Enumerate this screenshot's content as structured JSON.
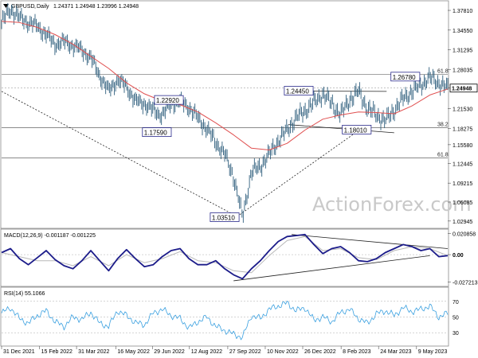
{
  "header": {
    "symbol": "GBPUSD",
    "timeframe": "Daily",
    "ohlc": "1.24371 1.24948 1.23996 1.24948"
  },
  "watermark": "ActionForex.com",
  "colors": {
    "price": "#30607e",
    "ema": "#e05050",
    "macd": "#1c1c8a",
    "signal": "#b8b8b8",
    "rsi": "#3aa0e0",
    "label_border": "#2a2a8c"
  },
  "chart_data": [
    {
      "type": "line",
      "panel": "price",
      "title": "",
      "y_ticks": [
        "1.37810",
        "1.34550",
        "1.31295",
        "1.28035",
        "1.24948",
        "1.21530",
        "1.18275",
        "1.15580",
        "1.12445",
        "1.09215",
        "1.06085",
        "1.02945"
      ],
      "ylim": [
        1.02,
        1.39
      ],
      "current_price": 1.24948,
      "current_price_label": "1.24948",
      "series": [
        {
          "kind": "price",
          "x": [
            0,
            2,
            4,
            6,
            8,
            10,
            12,
            14,
            16,
            18,
            20,
            22,
            24,
            26,
            28,
            30,
            32,
            34,
            36,
            38,
            40,
            42,
            44,
            46,
            48,
            50,
            52,
            54,
            56,
            58,
            60,
            62,
            64,
            66,
            68,
            70,
            72,
            74,
            76,
            78,
            80,
            82,
            84,
            86,
            88,
            90,
            92,
            94,
            96,
            98,
            100
          ],
          "values": [
            1.358,
            1.38,
            1.366,
            1.358,
            1.352,
            1.338,
            1.322,
            1.326,
            1.32,
            1.312,
            1.3,
            1.27,
            1.245,
            1.263,
            1.252,
            1.228,
            1.224,
            1.212,
            1.205,
            1.224,
            1.227,
            1.218,
            1.2,
            1.182,
            1.16,
            1.14,
            1.103,
            1.036,
            1.11,
            1.12,
            1.14,
            1.162,
            1.18,
            1.2,
            1.212,
            1.225,
            1.24,
            1.224,
            1.205,
            1.23,
            1.244,
            1.216,
            1.205,
            1.195,
            1.213,
            1.232,
            1.244,
            1.255,
            1.267,
            1.258,
            1.249
          ]
        },
        {
          "kind": "ema",
          "x": [
            0,
            4,
            8,
            12,
            16,
            20,
            24,
            28,
            32,
            36,
            40,
            44,
            48,
            52,
            56,
            60,
            64,
            68,
            72,
            76,
            80,
            84,
            88,
            92,
            96,
            100
          ],
          "values": [
            1.36,
            1.358,
            1.35,
            1.338,
            1.322,
            1.302,
            1.282,
            1.258,
            1.24,
            1.228,
            1.222,
            1.21,
            1.192,
            1.172,
            1.15,
            1.147,
            1.158,
            1.18,
            1.198,
            1.205,
            1.21,
            1.209,
            1.207,
            1.22,
            1.238,
            1.248
          ]
        }
      ],
      "x_ticks": [
        {
          "label": "31 Dec 2021",
          "x": 0
        },
        {
          "label": "15 Feb 2022",
          "x": 8.5
        },
        {
          "label": "31 Mar 2022",
          "x": 16.8
        },
        {
          "label": "16 May 2022",
          "x": 25.6
        },
        {
          "label": "29 Jun 2022",
          "x": 33.8
        },
        {
          "label": "12 Aug 2022",
          "x": 42.1
        },
        {
          "label": "27 Sep 2022",
          "x": 50.7
        },
        {
          "label": "10 Nov 2022",
          "x": 59.1
        },
        {
          "label": "26 Dec 2022",
          "x": 67.5
        },
        {
          "label": "8 Feb 2023",
          "x": 76.1
        },
        {
          "label": "24 Mar 2023",
          "x": 84.5
        },
        {
          "label": "9 May 2023",
          "x": 93.0
        }
      ],
      "annotations": [
        {
          "text": "1.26780",
          "x": 90.5,
          "y": 1.2678
        },
        {
          "text": "1.24450",
          "x": 66.6,
          "y": 1.2445
        },
        {
          "text": "1.22920",
          "x": 37.5,
          "y": 1.2292
        },
        {
          "text": "1.17590",
          "x": 34.8,
          "y": 1.1759
        },
        {
          "text": "1.18010",
          "x": 79.6,
          "y": 1.1801
        },
        {
          "text": "1.03510",
          "x": 50.0,
          "y": 1.0351
        }
      ],
      "fib_levels": [
        {
          "label": "61.8",
          "y": 1.272
        },
        {
          "label": "38.2",
          "y": 1.184
        },
        {
          "label": "61.8",
          "y": 1.134
        }
      ],
      "trendlines": [
        {
          "style": "dashed",
          "x1": 0,
          "y1": 1.244,
          "x2": 52.8,
          "y2": 1.037
        },
        {
          "style": "dashed",
          "x1": 52.8,
          "y1": 1.037,
          "x2": 79.6,
          "y2": 1.177
        },
        {
          "style": "solid",
          "x1": 66.6,
          "y1": 1.2445,
          "x2": 86.3,
          "y2": 1.244
        },
        {
          "style": "solid",
          "x1": 64.3,
          "y1": 1.189,
          "x2": 88.0,
          "y2": 1.1755
        }
      ]
    },
    {
      "type": "line",
      "panel": "macd",
      "title": "MACD(12,26,9) -0.001187 -0.001225",
      "y_ticks": [
        "0.020858",
        "0.00",
        "-0.027213"
      ],
      "ylim": [
        -0.03,
        0.023
      ],
      "current_label": "0.00",
      "series": [
        {
          "kind": "macd",
          "x": [
            0,
            2,
            4,
            6,
            8,
            10,
            12,
            14,
            16,
            18,
            20,
            22,
            24,
            26,
            28,
            30,
            32,
            34,
            36,
            38,
            40,
            42,
            44,
            46,
            48,
            50,
            52,
            54,
            56,
            58,
            60,
            62,
            64,
            66,
            68,
            70,
            72,
            74,
            76,
            78,
            80,
            82,
            84,
            86,
            88,
            90,
            92,
            94,
            96,
            98,
            100
          ],
          "values": [
            0.002,
            0.006,
            -0.004,
            -0.01,
            -0.003,
            0.004,
            -0.005,
            -0.011,
            -0.014,
            -0.006,
            0.004,
            -0.006,
            -0.016,
            -0.004,
            0.005,
            -0.004,
            -0.012,
            -0.01,
            -0.002,
            0.004,
            0.006,
            -0.004,
            -0.01,
            -0.01,
            -0.006,
            -0.014,
            -0.02,
            -0.024,
            -0.014,
            -0.006,
            0.004,
            0.013,
            0.018,
            0.019,
            0.02,
            0.01,
            0.001,
            0.006,
            0.008,
            0.002,
            -0.006,
            -0.007,
            -0.004,
            0.002,
            0.006,
            0.01,
            0.008,
            0.004,
            0.006,
            -0.002,
            -0.001
          ]
        },
        {
          "kind": "signal",
          "x": [
            0,
            4,
            8,
            12,
            16,
            20,
            24,
            28,
            32,
            36,
            40,
            44,
            48,
            52,
            56,
            60,
            64,
            68,
            72,
            76,
            80,
            84,
            88,
            92,
            96,
            100
          ],
          "values": [
            0.002,
            -0.002,
            -0.006,
            -0.006,
            -0.011,
            -0.002,
            -0.011,
            0.0,
            -0.008,
            -0.004,
            0.003,
            -0.006,
            -0.008,
            -0.016,
            -0.018,
            -0.001,
            0.014,
            0.018,
            0.004,
            0.006,
            -0.003,
            -0.005,
            0.004,
            0.008,
            0.006,
            -0.001
          ]
        }
      ],
      "trendlines": [
        {
          "style": "solid",
          "x1": 52.0,
          "y1": -0.026,
          "x2": 96.0,
          "y2": -0.001
        },
        {
          "style": "solid",
          "x1": 65.0,
          "y1": 0.02,
          "x2": 100.0,
          "y2": 0.006
        }
      ]
    },
    {
      "type": "line",
      "panel": "rsi",
      "title": "RSI(14) 55.1066",
      "y_ticks": [
        "70",
        "50",
        "30"
      ],
      "ylim": [
        15,
        85
      ],
      "series": [
        {
          "kind": "rsi",
          "x": [
            0,
            2,
            4,
            6,
            8,
            10,
            12,
            14,
            16,
            18,
            20,
            22,
            24,
            26,
            28,
            30,
            32,
            34,
            36,
            38,
            40,
            42,
            44,
            46,
            48,
            50,
            52,
            54,
            56,
            58,
            60,
            62,
            64,
            66,
            68,
            70,
            72,
            74,
            76,
            78,
            80,
            82,
            84,
            86,
            88,
            90,
            92,
            94,
            96,
            98,
            100
          ],
          "values": [
            55,
            62,
            48,
            42,
            52,
            58,
            44,
            38,
            50,
            47,
            56,
            42,
            38,
            58,
            52,
            43,
            40,
            55,
            60,
            52,
            48,
            36,
            44,
            50,
            38,
            33,
            28,
            24,
            52,
            48,
            60,
            64,
            68,
            58,
            62,
            46,
            50,
            44,
            56,
            60,
            48,
            42,
            54,
            58,
            52,
            62,
            57,
            60,
            64,
            50,
            55
          ]
        }
      ]
    }
  ]
}
